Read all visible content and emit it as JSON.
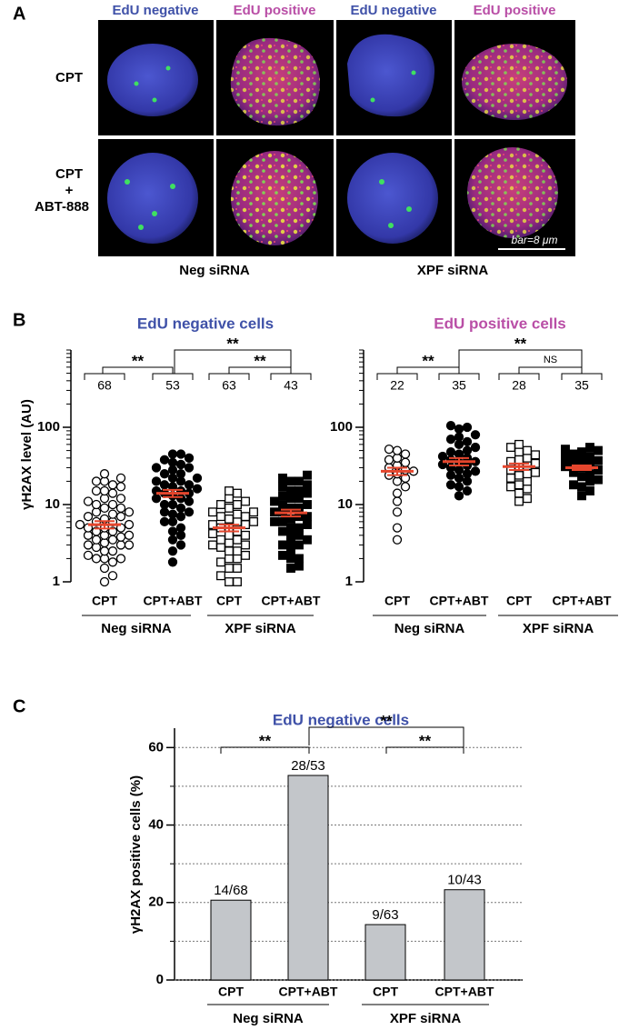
{
  "panel_labels": [
    "A",
    "B",
    "C"
  ],
  "panel_a": {
    "columns": [
      "EdU negative",
      "EdU positive",
      "EdU negative",
      "EdU positive"
    ],
    "row_labels": [
      [
        "CPT"
      ],
      [
        "CPT",
        "+",
        "ABT-888"
      ]
    ],
    "groups": [
      "Neg siRNA",
      "XPF siRNA"
    ],
    "scale_bar": "bar=8 μm"
  },
  "chart_data": [
    {
      "type": "dot",
      "title": "EdU negative cells",
      "title_color": "#3f51a8",
      "y_label": "γH2AX level (AU)",
      "categories": [
        "CPT",
        "CPT+ABT",
        "CPT",
        "CPT+ABT"
      ],
      "groups": [
        "Neg siRNA",
        "XPF siRNA"
      ],
      "n": [
        68,
        53,
        63,
        43
      ],
      "log_y": true,
      "ylim": [
        1,
        1000
      ],
      "yticks": [
        1,
        10,
        100
      ],
      "minor_yticks": [
        2,
        3,
        4,
        5,
        6,
        7,
        8,
        9,
        20,
        30,
        40,
        50,
        60,
        70,
        80,
        90,
        200,
        300,
        400,
        500,
        600,
        700,
        800,
        900,
        1000
      ],
      "groups_data": [
        {
          "marker": "circle",
          "filled": false,
          "values": [
            1,
            1.2,
            1.5,
            1.8,
            2,
            2,
            2,
            2.2,
            2.5,
            2.5,
            2.8,
            3,
            3,
            3,
            3.2,
            3.5,
            3.5,
            3.8,
            4,
            4,
            4,
            4.5,
            4.5,
            5,
            5,
            5,
            5.5,
            5.5,
            6,
            6,
            6.5,
            7,
            7,
            7.5,
            8,
            8,
            9,
            9,
            10,
            10,
            11,
            12,
            12,
            14,
            15,
            15,
            17,
            18,
            20,
            20,
            22,
            25
          ]
        },
        {
          "marker": "circle",
          "filled": true,
          "values": [
            1.8,
            2.5,
            3,
            3.5,
            4,
            4.5,
            5,
            6,
            6,
            7,
            7.5,
            8,
            8,
            9,
            10,
            10,
            11,
            12,
            12,
            13,
            14,
            14,
            15,
            15,
            16,
            17,
            18,
            18,
            20,
            20,
            22,
            22,
            25,
            25,
            28,
            30,
            30,
            33,
            35,
            38,
            40,
            45,
            45
          ]
        },
        {
          "marker": "square",
          "filled": false,
          "values": [
            1,
            1,
            1.2,
            1.5,
            1.5,
            1.8,
            2,
            2,
            2.2,
            2.5,
            2.5,
            2.8,
            3,
            3,
            3.2,
            3.5,
            3.5,
            4,
            4,
            4.2,
            4.5,
            5,
            5,
            5.5,
            5.5,
            6,
            6,
            6.5,
            7,
            7,
            7.5,
            8,
            8,
            9,
            10,
            10,
            11,
            12,
            14,
            15
          ]
        },
        {
          "marker": "square",
          "filled": true,
          "values": [
            1.5,
            1.6,
            2,
            2,
            2.2,
            2.5,
            3,
            3,
            3.2,
            3.5,
            4,
            4,
            4.5,
            5,
            5,
            5.5,
            6,
            6,
            6.5,
            7,
            7,
            8,
            8,
            9,
            9,
            10,
            10,
            11,
            12,
            12,
            13,
            14,
            15,
            15,
            17,
            18,
            20,
            20,
            22,
            24
          ]
        }
      ],
      "means": [
        5.5,
        14,
        5,
        7.8
      ],
      "sems": [
        0.6,
        1.5,
        0.5,
        0.8
      ],
      "mean_color": "#e5462d",
      "significance": [
        "**",
        "**",
        "**"
      ]
    },
    {
      "type": "dot",
      "title": "EdU positive cells",
      "title_color": "#b94ea6",
      "categories": [
        "CPT",
        "CPT+ABT",
        "CPT",
        "CPT+ABT"
      ],
      "groups": [
        "Neg siRNA",
        "XPF siRNA"
      ],
      "n": [
        22,
        35,
        28,
        35
      ],
      "log_y": true,
      "ylim": [
        1,
        1000
      ],
      "yticks": [
        1,
        10,
        100
      ],
      "minor_yticks": [
        2,
        3,
        4,
        5,
        6,
        7,
        8,
        9,
        20,
        30,
        40,
        50,
        60,
        70,
        80,
        90,
        200,
        300,
        400,
        500,
        600,
        700,
        800,
        900,
        1000
      ],
      "groups_data": [
        {
          "marker": "circle",
          "filled": false,
          "values": [
            3.5,
            5,
            8,
            11,
            14,
            17,
            20,
            22,
            24,
            25,
            27,
            28,
            30,
            32,
            35,
            38,
            40,
            45,
            50,
            52
          ]
        },
        {
          "marker": "circle",
          "filled": true,
          "values": [
            13,
            15,
            17,
            18,
            20,
            22,
            24,
            25,
            27,
            28,
            30,
            32,
            33,
            35,
            36,
            38,
            40,
            42,
            45,
            48,
            50,
            55,
            60,
            65,
            70,
            75,
            80,
            95,
            100,
            105
          ]
        },
        {
          "marker": "square",
          "filled": false,
          "values": [
            11,
            12,
            14,
            16,
            17,
            18,
            20,
            22,
            24,
            25,
            26,
            28,
            30,
            32,
            34,
            36,
            38,
            40,
            44,
            48,
            50,
            55,
            60
          ]
        },
        {
          "marker": "square",
          "filled": true,
          "values": [
            13,
            15,
            17,
            18,
            20,
            21,
            23,
            25,
            26,
            28,
            30,
            31,
            33,
            35,
            37,
            38,
            40,
            42,
            45,
            48,
            50,
            52,
            55
          ]
        }
      ],
      "means": [
        27,
        36,
        31,
        30
      ],
      "sems": [
        3,
        4,
        3,
        2
      ],
      "mean_color": "#e5462d",
      "significance": [
        "**",
        "**",
        "NS"
      ]
    },
    {
      "type": "bar",
      "title": "EdU negative cells",
      "title_color": "#3f51a8",
      "y_label": "γH2AX positive cells (%)",
      "categories": [
        "CPT",
        "CPT+ABT",
        "CPT",
        "CPT+ABT"
      ],
      "groups": [
        "Neg siRNA",
        "XPF siRNA"
      ],
      "values": [
        20.6,
        52.8,
        14.3,
        23.3
      ],
      "value_labels": [
        "14/68",
        "28/53",
        "9/63",
        "10/43"
      ],
      "color": "#c3c6ca",
      "ylim": [
        0,
        65
      ],
      "yticks": [
        0,
        20,
        40,
        60
      ],
      "minor_yticks": [
        10,
        30,
        50
      ],
      "grid": true,
      "significance": [
        "**",
        "**",
        "**"
      ]
    }
  ]
}
